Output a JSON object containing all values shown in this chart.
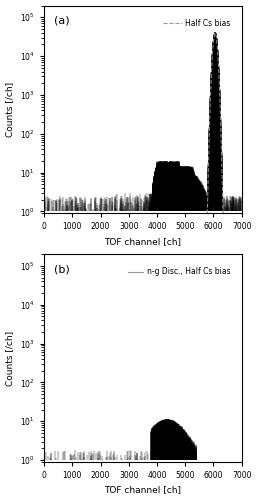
{
  "panel_a": {
    "label": "(a)",
    "legend_label": "Half Cs bias",
    "legend_linestyle": "--",
    "legend_color": "#999999",
    "xlim": [
      0,
      7000
    ],
    "ylim": [
      0.9,
      200000
    ],
    "xlabel": "TOF channel [ch]",
    "ylabel": "Counts [/ch]",
    "xticks": [
      0,
      1000,
      2000,
      3000,
      4000,
      5000,
      6000,
      7000
    ],
    "yticks": [
      1,
      10,
      100,
      1000,
      10000,
      100000
    ],
    "ytick_labels": [
      "10^0",
      "10^1",
      "10^2",
      "10^3",
      "10^4",
      "10^5"
    ]
  },
  "panel_b": {
    "label": "(b)",
    "legend_label": "n-g Disc., Half Cs bias",
    "legend_linestyle": "-",
    "legend_color": "#999999",
    "xlim": [
      0,
      7000
    ],
    "ylim": [
      0.9,
      200000
    ],
    "xlabel": "TOF channel [ch]",
    "ylabel": "Counts [/ch]",
    "xticks": [
      0,
      1000,
      2000,
      3000,
      4000,
      5000,
      6000,
      7000
    ],
    "yticks": [
      1,
      10,
      100,
      1000,
      10000,
      100000
    ],
    "ytick_labels": [
      "10^0",
      "10^1",
      "10^2",
      "10^3",
      "10^4",
      "10^5"
    ]
  },
  "background_color": "#ffffff",
  "line_color": "#000000",
  "gray_color": "#999999",
  "fig_width": 2.57,
  "fig_height": 5.0,
  "dpi": 100
}
